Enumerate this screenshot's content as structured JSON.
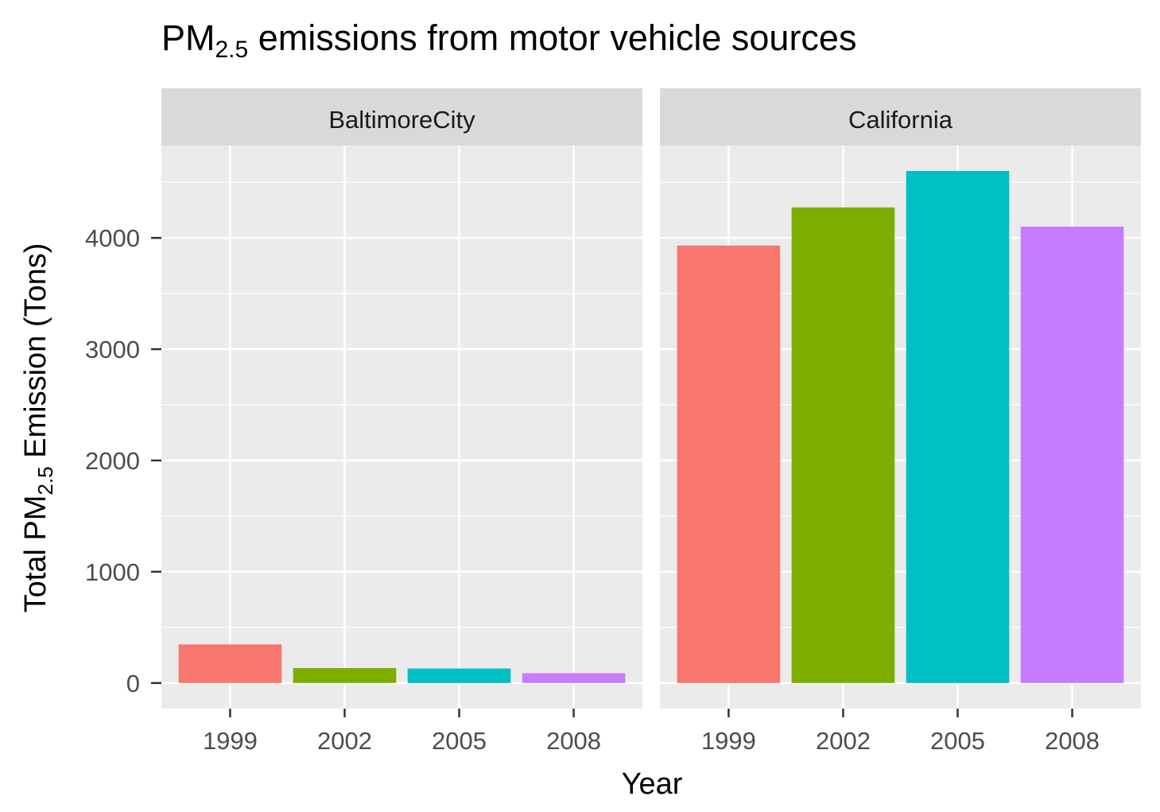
{
  "chart_data": {
    "type": "bar",
    "title_prefix": "PM",
    "title_subscript": "2.5",
    "title_suffix": " emissions from motor vehicle sources",
    "xlabel": "Year",
    "ylabel_prefix": "Total PM",
    "ylabel_subscript": "2.5",
    "ylabel_suffix": " Emission (Tons)",
    "categories": [
      "1999",
      "2002",
      "2005",
      "2008"
    ],
    "yticks": [
      0,
      1000,
      2000,
      3000,
      4000
    ],
    "ytick_labels": [
      "0",
      "1000",
      "2000",
      "3000",
      "4000"
    ],
    "ylim": [
      -230,
      4830
    ],
    "grid": true,
    "legend": "none",
    "fill_colors": [
      "#F8766D",
      "#7CAE00",
      "#00BFC4",
      "#C77CFF"
    ],
    "panel_background": "#EBEBEB",
    "strip_background": "#D9D9D9",
    "gridline_color": "#FFFFFF",
    "facets": [
      {
        "name": "BaltimoreCity",
        "values": [
          346.8,
          134.3,
          130.4,
          88.3
        ]
      },
      {
        "name": "California",
        "values": [
          3931.1,
          4274.0,
          4601.4,
          4101.3
        ]
      }
    ]
  }
}
